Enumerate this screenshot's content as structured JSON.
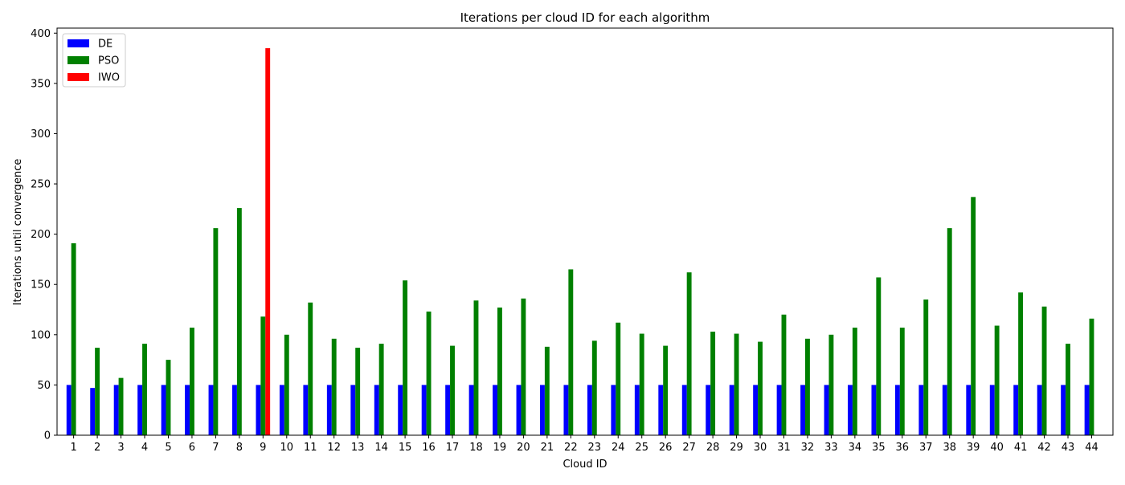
{
  "chart_data": {
    "type": "bar",
    "title": "Iterations per cloud ID for each algorithm",
    "xlabel": "Cloud ID",
    "ylabel": "Iterations until convergence",
    "ylim": [
      0,
      405
    ],
    "yticks": [
      0,
      50,
      100,
      150,
      200,
      250,
      300,
      350,
      400
    ],
    "categories": [
      "1",
      "2",
      "3",
      "4",
      "5",
      "6",
      "7",
      "8",
      "9",
      "10",
      "11",
      "12",
      "13",
      "14",
      "15",
      "16",
      "17",
      "18",
      "19",
      "20",
      "21",
      "22",
      "23",
      "24",
      "25",
      "26",
      "27",
      "28",
      "29",
      "30",
      "31",
      "32",
      "33",
      "34",
      "35",
      "36",
      "37",
      "38",
      "39",
      "40",
      "41",
      "42",
      "43",
      "44"
    ],
    "legend_position": "top-left",
    "grid": false,
    "series": [
      {
        "name": "DE",
        "color": "#0000ff",
        "values": [
          50,
          47,
          50,
          50,
          50,
          50,
          50,
          50,
          50,
          50,
          50,
          50,
          50,
          50,
          50,
          50,
          50,
          50,
          50,
          50,
          50,
          50,
          50,
          50,
          50,
          50,
          50,
          50,
          50,
          50,
          50,
          50,
          50,
          50,
          50,
          50,
          50,
          50,
          50,
          50,
          50,
          50,
          50,
          50
        ]
      },
      {
        "name": "PSO",
        "color": "#008000",
        "values": [
          191,
          87,
          57,
          91,
          75,
          107,
          206,
          226,
          118,
          100,
          132,
          96,
          87,
          91,
          154,
          123,
          89,
          134,
          127,
          136,
          88,
          165,
          94,
          112,
          101,
          89,
          162,
          103,
          101,
          93,
          120,
          96,
          100,
          107,
          157,
          107,
          135,
          206,
          237,
          109,
          142,
          128,
          91,
          116
        ]
      },
      {
        "name": "IWO",
        "color": "#ff0000",
        "values": [
          0,
          0,
          0,
          0,
          0,
          0,
          0,
          0,
          385,
          0,
          0,
          0,
          0,
          0,
          0,
          0,
          0,
          0,
          0,
          0,
          0,
          0,
          0,
          0,
          0,
          0,
          0,
          0,
          0,
          0,
          0,
          0,
          0,
          0,
          0,
          0,
          0,
          0,
          0,
          0,
          0,
          0,
          0,
          0
        ]
      }
    ]
  }
}
